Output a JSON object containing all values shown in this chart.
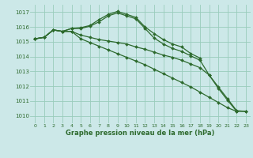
{
  "background_color": "#cce8e8",
  "grid_color": "#99ccbb",
  "line_color": "#2d6a2d",
  "title": "Graphe pression niveau de la mer (hPa)",
  "xlim": [
    -0.5,
    23.5
  ],
  "ylim": [
    1009.5,
    1017.5
  ],
  "yticks": [
    1010,
    1011,
    1012,
    1013,
    1014,
    1015,
    1016,
    1017
  ],
  "xticks": [
    0,
    1,
    2,
    3,
    4,
    5,
    6,
    7,
    8,
    9,
    10,
    11,
    12,
    13,
    14,
    15,
    16,
    17,
    18,
    19,
    20,
    21,
    22,
    23
  ],
  "series": [
    {
      "x": [
        0,
        1,
        2,
        3,
        4,
        5,
        6,
        7,
        8,
        9,
        10,
        11,
        12,
        13,
        14,
        15,
        16,
        17,
        18
      ],
      "y": [
        1015.2,
        1015.3,
        1015.8,
        1015.7,
        1015.9,
        1015.95,
        1016.1,
        1016.5,
        1016.85,
        1017.05,
        1016.85,
        1016.65,
        1016.0,
        1015.55,
        1015.15,
        1014.85,
        1014.65,
        1014.2,
        1013.9
      ]
    },
    {
      "x": [
        0,
        1,
        2,
        3,
        4,
        5,
        6,
        7,
        8,
        9,
        10,
        11,
        12,
        13,
        14,
        15,
        16,
        17,
        18,
        19,
        20,
        21,
        22
      ],
      "y": [
        1015.2,
        1015.3,
        1015.8,
        1015.7,
        1015.9,
        1015.9,
        1016.05,
        1016.35,
        1016.75,
        1016.95,
        1016.75,
        1016.55,
        1015.9,
        1015.25,
        1014.85,
        1014.55,
        1014.35,
        1014.05,
        1013.75,
        1012.75,
        1011.85,
        1011.05,
        1010.3
      ]
    },
    {
      "x": [
        0,
        1,
        2,
        3,
        4,
        5,
        6,
        7,
        8,
        9,
        10,
        11,
        12,
        13,
        14,
        15,
        16,
        17,
        18,
        19,
        20,
        21,
        22,
        23
      ],
      "y": [
        1015.2,
        1015.3,
        1015.8,
        1015.7,
        1015.7,
        1015.45,
        1015.3,
        1015.15,
        1015.05,
        1014.95,
        1014.85,
        1014.65,
        1014.5,
        1014.3,
        1014.1,
        1013.95,
        1013.75,
        1013.5,
        1013.25,
        1012.75,
        1011.95,
        1011.15,
        1010.35,
        1010.3
      ]
    },
    {
      "x": [
        0,
        1,
        2,
        3,
        4,
        5,
        6,
        7,
        8,
        9,
        10,
        11,
        12,
        13,
        14,
        15,
        16,
        17,
        18,
        19,
        20,
        21,
        22,
        23
      ],
      "y": [
        1015.2,
        1015.3,
        1015.8,
        1015.7,
        1015.7,
        1015.2,
        1014.95,
        1014.7,
        1014.45,
        1014.2,
        1013.95,
        1013.7,
        1013.45,
        1013.15,
        1012.85,
        1012.55,
        1012.25,
        1011.95,
        1011.6,
        1011.25,
        1010.9,
        1010.55,
        1010.3,
        1010.3
      ]
    }
  ]
}
